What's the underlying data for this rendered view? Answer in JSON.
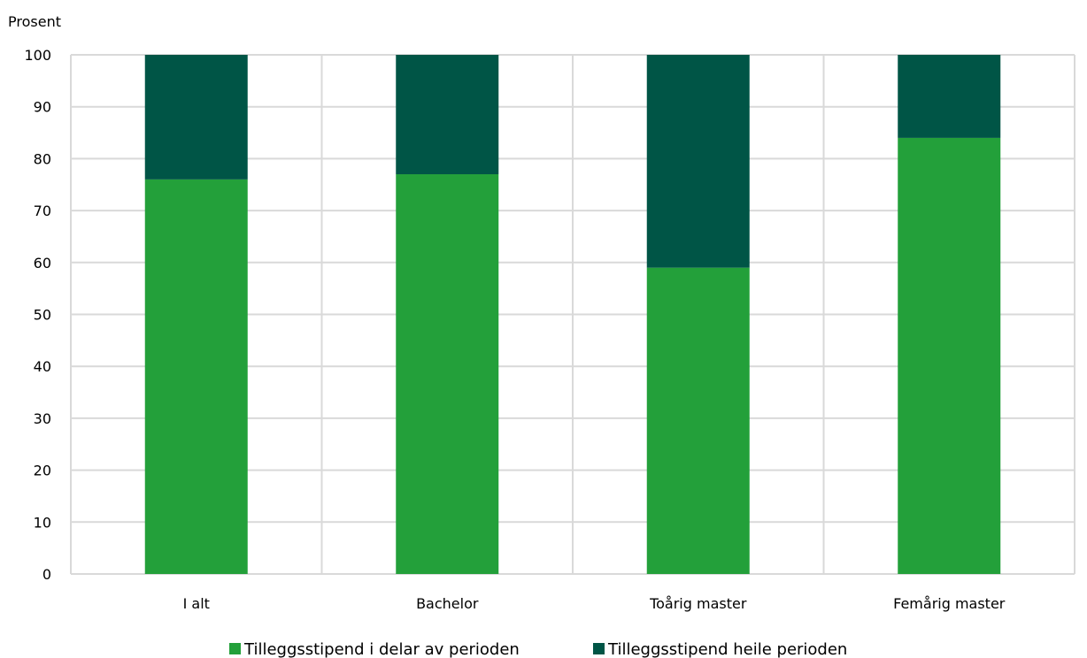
{
  "chart_data": {
    "type": "bar",
    "stacked": true,
    "ylabel": "Prosent",
    "xlabel": "",
    "ylim": [
      0,
      100
    ],
    "yticks": [
      0,
      10,
      20,
      30,
      40,
      50,
      60,
      70,
      80,
      90,
      100
    ],
    "grid": true,
    "legend_position": "bottom",
    "categories": [
      "I alt",
      "Bachelor",
      "Toårig master",
      "Femårig master"
    ],
    "series": [
      {
        "name": "Tilleggsstipend i delar av perioden",
        "color": "#23a03a",
        "values": [
          76,
          77,
          59,
          84
        ]
      },
      {
        "name": "Tilleggsstipend heile perioden",
        "color": "#005546",
        "values": [
          24,
          23,
          41,
          16
        ]
      }
    ]
  }
}
